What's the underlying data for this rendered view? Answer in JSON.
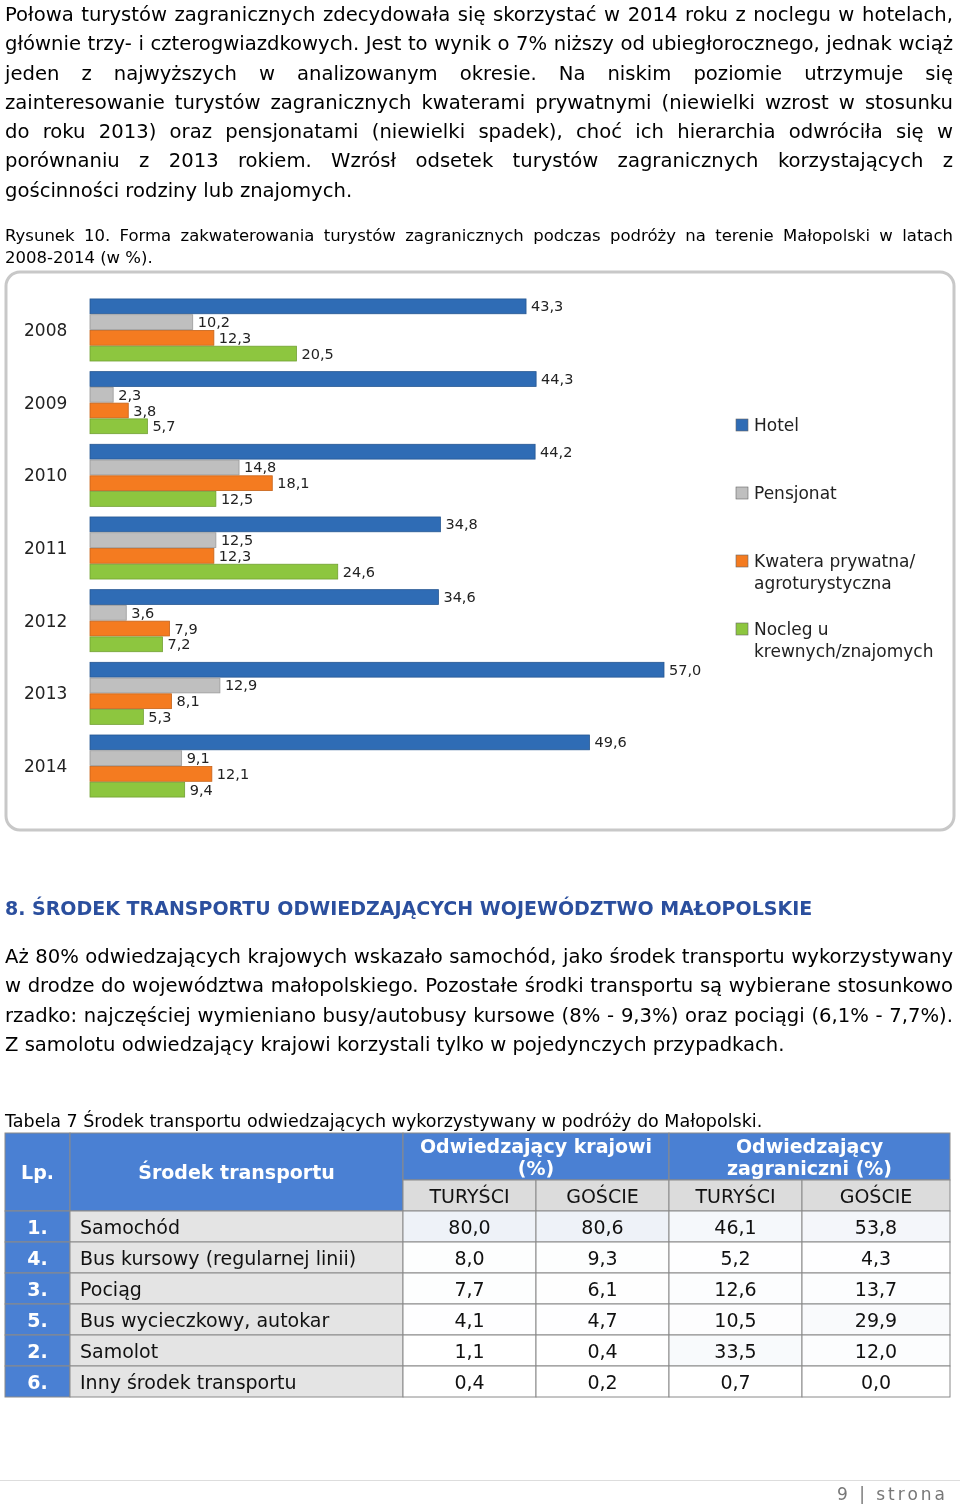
{
  "chart_data": [
    {
      "type": "bar",
      "orientation": "horizontal",
      "title": "Rysunek 10. Forma zakwaterowania turystów zagranicznych podczas podróży na terenie Małopolski w latach 2008-2014 (w %).",
      "annotations": [
        "Połowa turystów zagranicznych zdecydowała się skorzystać w 2014 roku z noclegu w hotelach, głównie trzy- i czterogwiazdkowych. Jest to wynik o 7% niższy od ubiegłorocznego, jednak wciąż jeden z najwyższych w analizowanym okresie. Na niskim poziomie utrzymuje się zainteresowanie turystów zagranicznych kwaterami prywatnymi (niewielki wzrost w stosunku do roku 2013) oraz pensjonatami (niewielki spadek), choć ich hierarchia odwróciła się w porównaniu z 2013 rokiem. Wzrósł odsetek turystów zagranicznych korzystających z gościnności rodziny lub znajomych."
      ],
      "categories": [
        "2008",
        "2009",
        "2010",
        "2011",
        "2012",
        "2013",
        "2014"
      ],
      "legend": "right",
      "series": [
        {
          "name": "Hotel",
          "color": "#2f6cb5",
          "values": [
            43.3,
            44.3,
            44.2,
            34.8,
            34.6,
            57.0,
            49.6
          ],
          "value_labels": [
            "43,3",
            "44,3",
            "44,2",
            "34,8",
            "34,6",
            "57,0",
            "49,6"
          ]
        },
        {
          "name": "Pensjonat",
          "color": "#bfbfbf",
          "values": [
            10.2,
            2.3,
            14.8,
            12.5,
            3.6,
            12.9,
            9.1
          ],
          "value_labels": [
            "10,2",
            "2,3",
            "14,8",
            "12,5",
            "3,6",
            "12,9",
            "9,1"
          ]
        },
        {
          "name": "Kwatera prywatna/ agroturystyczna",
          "color": "#f47b20",
          "values": [
            12.3,
            3.8,
            18.1,
            12.3,
            7.9,
            8.1,
            12.1
          ],
          "value_labels": [
            "12,3",
            "3,8",
            "18,1",
            "12,3",
            "7,9",
            "8,1",
            "12,1"
          ]
        },
        {
          "name": "Nocleg u krewnych/znajomych",
          "color": "#8dc63f",
          "values": [
            20.5,
            5.7,
            12.5,
            24.6,
            7.2,
            5.3,
            9.4
          ],
          "value_labels": [
            "20,5",
            "5,7",
            "12,5",
            "24,6",
            "7,2",
            "5,3",
            "9,4"
          ]
        }
      ]
    },
    {
      "type": "heatmap",
      "title": "Tabela 7 Środek transportu odwiedzających wykorzystywany w podróży do Małopolski.",
      "annotations": [
        "8. ŚRODEK TRANSPORTU ODWIEDZAJĄCYCH WOJEWÓDZTWO MAŁOPOLSKIE",
        "Aż 80% odwiedzających krajowych wskazało samochód, jako środek transportu wykorzystywany w drodze do województwa małopolskiego. Pozostałe środki transportu są wybierane stosunkowo rzadko: najczęściej wymieniano busy/autobusy kursowe (8% - 9,3%) oraz pociągi (6,1% - 7,7%). Z samolotu odwiedzający krajowi korzystali tylko w pojedynczych przypadkach.",
        "Lp.",
        "Środek transportu",
        "Odwiedzający krajowi (%)",
        "Odwiedzający zagraniczni (%)",
        "1.",
        "4.",
        "3.",
        "5.",
        "2.",
        "6.",
        "9 | strona"
      ],
      "categories": [
        "TURYŚCI",
        "GOŚCIE",
        "TURYŚCI",
        "GOŚCIE"
      ],
      "y_categories": [
        "Samochód",
        "Bus kursowy (regularnej linii)",
        "Pociąg",
        "Bus wycieczkowy, autokar",
        "Samolot",
        "Inny środek transportu"
      ],
      "cells": [
        [
          80.0,
          80.6,
          46.1,
          53.8
        ],
        [
          8.0,
          9.3,
          5.2,
          4.3
        ],
        [
          7.7,
          6.1,
          12.6,
          13.7
        ],
        [
          4.1,
          4.7,
          10.5,
          29.9
        ],
        [
          1.1,
          0.4,
          33.5,
          12.0
        ],
        [
          0.4,
          0.2,
          0.7,
          0.0
        ]
      ],
      "cell_labels": [
        [
          "80,0",
          "80,6",
          "46,1",
          "53,8"
        ],
        [
          "8,0",
          "9,3",
          "5,2",
          "4,3"
        ],
        [
          "7,7",
          "6,1",
          "12,6",
          "13,7"
        ],
        [
          "4,1",
          "4,7",
          "10,5",
          "29,9"
        ],
        [
          "1,1",
          "0,4",
          "33,5",
          "12,0"
        ],
        [
          "0,4",
          "0,2",
          "0,7",
          "0,0"
        ]
      ]
    }
  ]
}
